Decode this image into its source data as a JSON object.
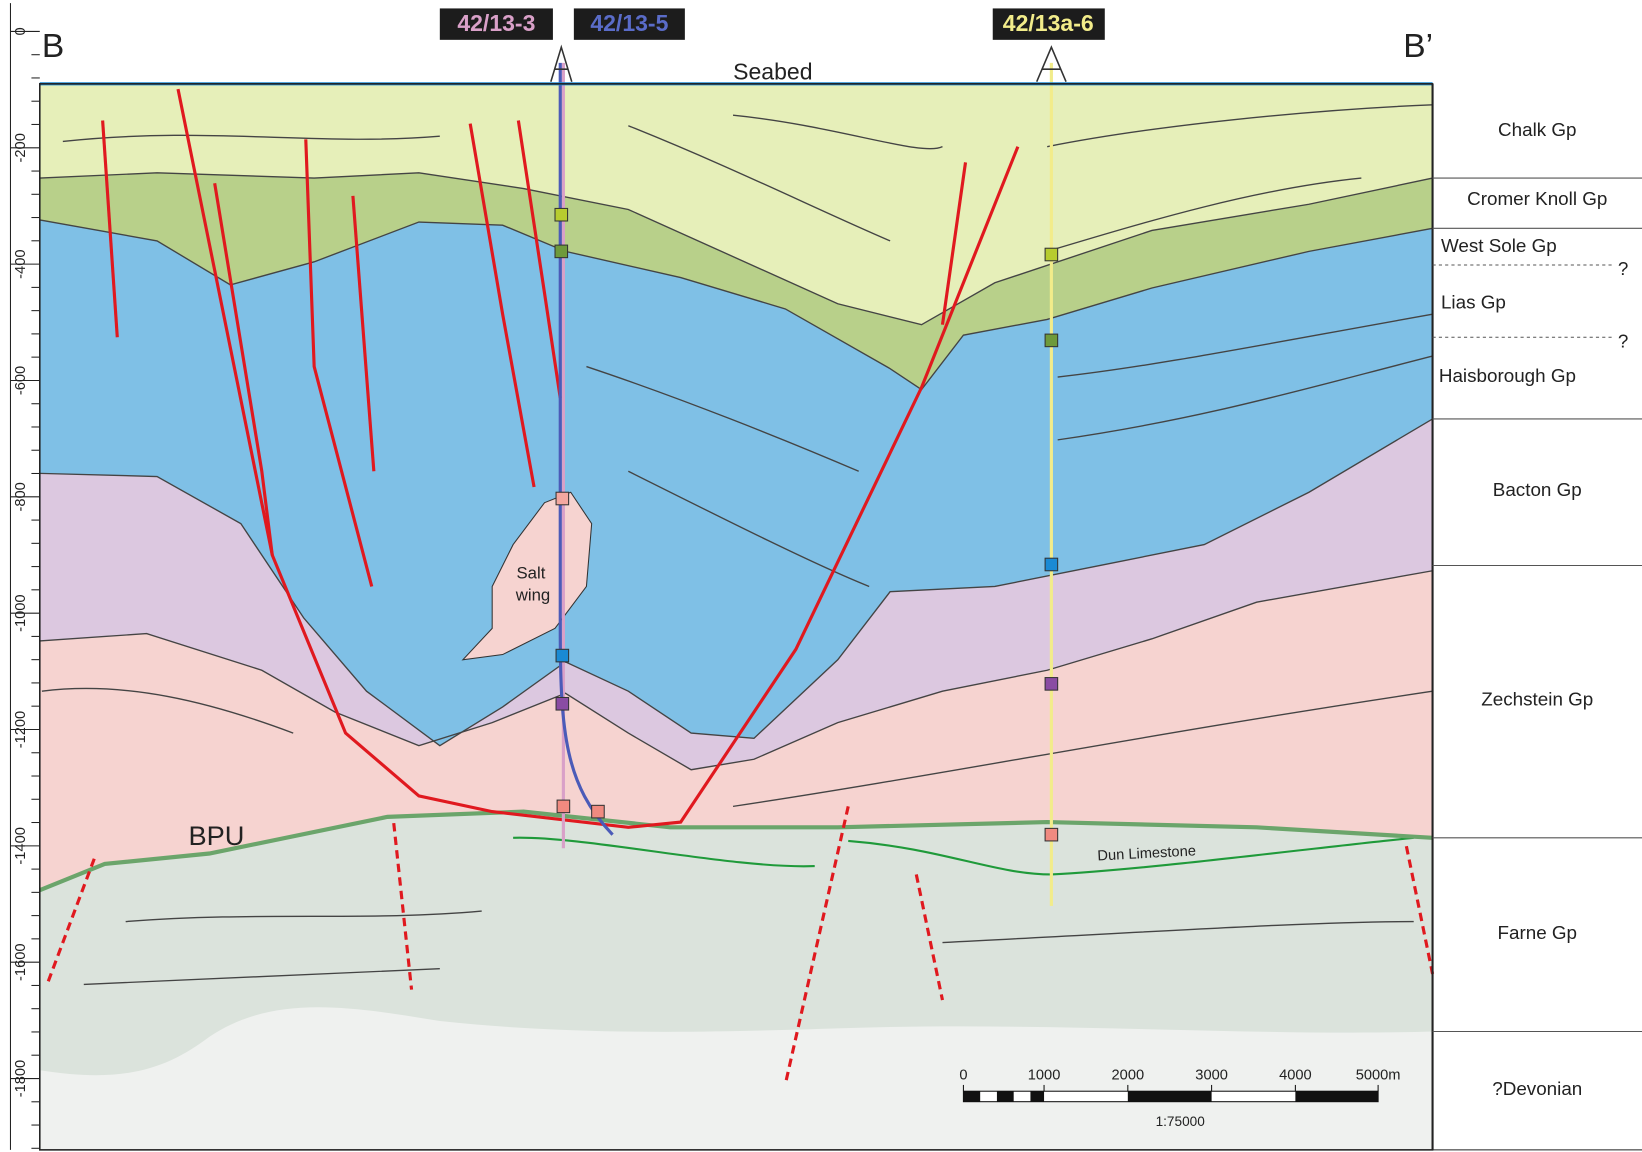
{
  "section": {
    "start": "B",
    "end": "B’"
  },
  "wells": [
    "42/13-3",
    "42/13-5",
    "42/13a-6"
  ],
  "seabed": "Seabed",
  "depth_labels": [
    "0",
    "-200",
    "-400",
    "-600",
    "-800",
    "-1000",
    "-1200",
    "-1400",
    "-1600",
    "-1800"
  ],
  "legend": [
    "Chalk Gp",
    "Cromer Knoll Gp",
    "West Sole Gp",
    "Lias Gp",
    "Haisborough Gp",
    "Bacton Gp",
    "Zechstein Gp",
    "Farne Gp",
    "?Devonian"
  ],
  "uncertain_marks": [
    "?",
    "?"
  ],
  "annotations": {
    "salt_wing": [
      "Salt",
      "wing"
    ],
    "bpu": "BPU",
    "dun_limestone": "Dun Limestone"
  },
  "scale_bar": {
    "labels": [
      "0",
      "1000",
      "2000",
      "3000",
      "4000",
      "5000m"
    ],
    "ratio": "1:75000"
  }
}
